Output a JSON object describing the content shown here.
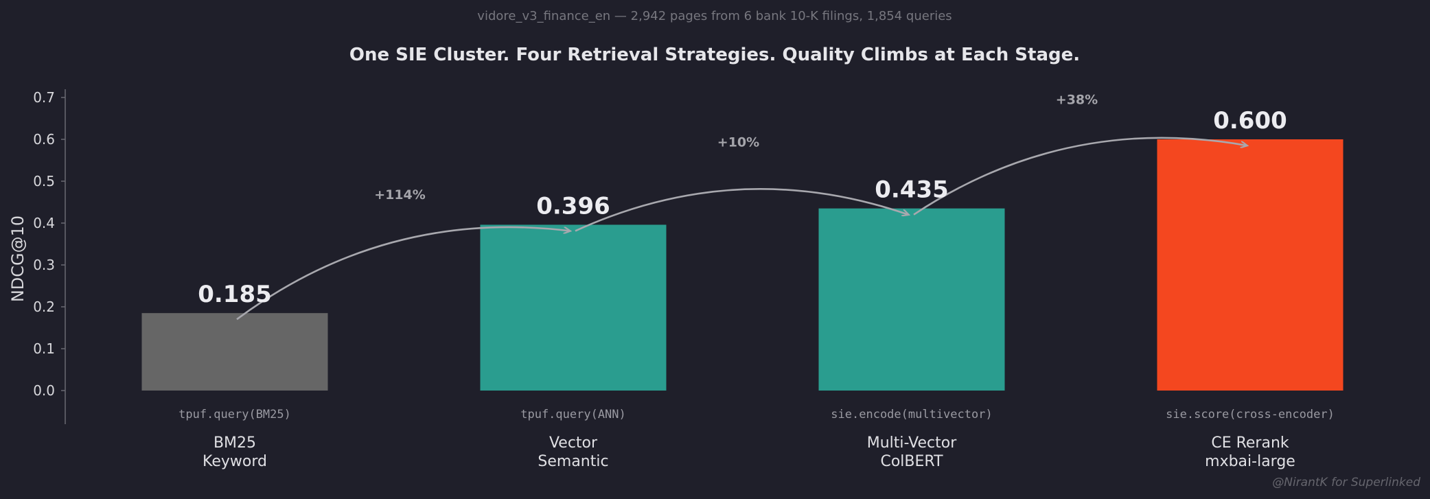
{
  "chart_data": {
    "type": "bar",
    "subtitle": "vidore_v3_finance_en — 2,942 pages from 6 bank 10-K filings, 1,854 queries",
    "title": "One SIE Cluster. Four Retrieval Strategies. Quality Climbs at Each Stage.",
    "xlabel": "",
    "ylabel": "NDCG@10",
    "ylim": [
      -0.08,
      0.72
    ],
    "yticks": [
      "0.0",
      "0.1",
      "0.2",
      "0.3",
      "0.4",
      "0.5",
      "0.6",
      "0.7"
    ],
    "grid": false,
    "categories": [
      {
        "line1": "BM25",
        "line2": "Keyword",
        "code": "tpuf.query(BM25)",
        "value": 0.185,
        "value_label": "0.185",
        "color": "#666666"
      },
      {
        "line1": "Vector",
        "line2": "Semantic",
        "code": "tpuf.query(ANN)",
        "value": 0.396,
        "value_label": "0.396",
        "color": "#2a9d8f"
      },
      {
        "line1": "Multi-Vector",
        "line2": "ColBERT",
        "code": "sie.encode(multivector)",
        "value": 0.435,
        "value_label": "0.435",
        "color": "#2a9d8f"
      },
      {
        "line1": "CE Rerank",
        "line2": "mxbai-large",
        "code": "sie.score(cross-encoder)",
        "value": 0.6,
        "value_label": "0.600",
        "color": "#f4471f"
      }
    ],
    "improvements": [
      "+114%",
      "+10%",
      "+38%"
    ],
    "arrow_color": "#a8a8ae",
    "background_color": "#1f1f2a"
  },
  "credit": "@NirantK for Superlinked"
}
